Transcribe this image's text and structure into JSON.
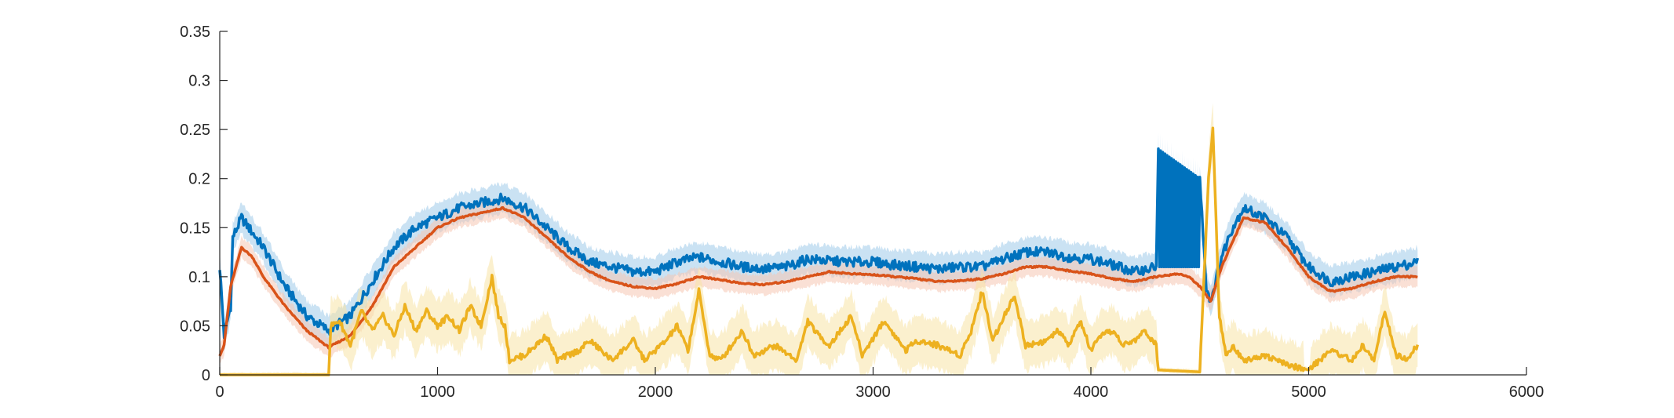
{
  "chart_data": {
    "type": "line",
    "title": "",
    "xlabel": "",
    "ylabel": "",
    "xlim": [
      0,
      6000
    ],
    "ylim": [
      0,
      0.35
    ],
    "x_ticks": [
      0,
      1000,
      2000,
      3000,
      4000,
      5000,
      6000
    ],
    "y_ticks": [
      0,
      0.05,
      0.1,
      0.15,
      0.2,
      0.25,
      0.3,
      0.35
    ],
    "x_tick_labels": [
      "0",
      "1000",
      "2000",
      "3000",
      "4000",
      "5000",
      "6000"
    ],
    "y_tick_labels": [
      "0",
      "0.05",
      "0.1",
      "0.15",
      "0.2",
      "0.25",
      "0.3",
      "0.35"
    ],
    "grid": false,
    "legend": "none",
    "series": [
      {
        "color": "#0072BD",
        "band_color": "#9ECAE9",
        "points": [
          [
            0,
            0.11
          ],
          [
            20,
            0.04
          ],
          [
            50,
            0.07
          ],
          [
            60,
            0.14
          ],
          [
            100,
            0.16
          ],
          [
            150,
            0.145
          ],
          [
            200,
            0.13
          ],
          [
            300,
            0.09
          ],
          [
            400,
            0.06
          ],
          [
            500,
            0.045
          ],
          [
            600,
            0.06
          ],
          [
            700,
            0.095
          ],
          [
            800,
            0.13
          ],
          [
            900,
            0.15
          ],
          [
            1000,
            0.16
          ],
          [
            1100,
            0.17
          ],
          [
            1200,
            0.175
          ],
          [
            1300,
            0.18
          ],
          [
            1400,
            0.17
          ],
          [
            1500,
            0.15
          ],
          [
            1600,
            0.13
          ],
          [
            1700,
            0.115
          ],
          [
            1800,
            0.11
          ],
          [
            1900,
            0.105
          ],
          [
            2000,
            0.105
          ],
          [
            2100,
            0.115
          ],
          [
            2200,
            0.12
          ],
          [
            2300,
            0.115
          ],
          [
            2400,
            0.11
          ],
          [
            2500,
            0.108
          ],
          [
            2600,
            0.11
          ],
          [
            2700,
            0.118
          ],
          [
            2800,
            0.116
          ],
          [
            2900,
            0.115
          ],
          [
            3000,
            0.115
          ],
          [
            3100,
            0.112
          ],
          [
            3200,
            0.11
          ],
          [
            3300,
            0.108
          ],
          [
            3400,
            0.11
          ],
          [
            3500,
            0.11
          ],
          [
            3600,
            0.118
          ],
          [
            3700,
            0.125
          ],
          [
            3800,
            0.125
          ],
          [
            3900,
            0.12
          ],
          [
            4000,
            0.118
          ],
          [
            4100,
            0.112
          ],
          [
            4200,
            0.105
          ],
          [
            4300,
            0.11
          ],
          [
            4310,
            0.23
          ],
          [
            4500,
            0.2
          ],
          [
            4530,
            0.09
          ],
          [
            4550,
            0.075
          ],
          [
            4600,
            0.12
          ],
          [
            4650,
            0.15
          ],
          [
            4700,
            0.17
          ],
          [
            4800,
            0.16
          ],
          [
            4900,
            0.14
          ],
          [
            5000,
            0.11
          ],
          [
            5100,
            0.095
          ],
          [
            5200,
            0.1
          ],
          [
            5300,
            0.105
          ],
          [
            5400,
            0.11
          ],
          [
            5500,
            0.115
          ]
        ]
      },
      {
        "color": "#D95319",
        "band_color": "#F5C6B3",
        "points": [
          [
            0,
            0.02
          ],
          [
            20,
            0.03
          ],
          [
            50,
            0.09
          ],
          [
            100,
            0.13
          ],
          [
            150,
            0.12
          ],
          [
            200,
            0.1
          ],
          [
            300,
            0.07
          ],
          [
            400,
            0.045
          ],
          [
            500,
            0.028
          ],
          [
            600,
            0.04
          ],
          [
            700,
            0.07
          ],
          [
            800,
            0.11
          ],
          [
            900,
            0.13
          ],
          [
            1000,
            0.15
          ],
          [
            1100,
            0.16
          ],
          [
            1200,
            0.165
          ],
          [
            1300,
            0.17
          ],
          [
            1400,
            0.16
          ],
          [
            1500,
            0.14
          ],
          [
            1600,
            0.12
          ],
          [
            1700,
            0.105
          ],
          [
            1800,
            0.095
          ],
          [
            1900,
            0.09
          ],
          [
            2000,
            0.088
          ],
          [
            2100,
            0.093
          ],
          [
            2200,
            0.1
          ],
          [
            2300,
            0.097
          ],
          [
            2400,
            0.093
          ],
          [
            2500,
            0.092
          ],
          [
            2600,
            0.095
          ],
          [
            2700,
            0.1
          ],
          [
            2800,
            0.105
          ],
          [
            2900,
            0.103
          ],
          [
            3000,
            0.102
          ],
          [
            3100,
            0.1
          ],
          [
            3200,
            0.098
          ],
          [
            3300,
            0.095
          ],
          [
            3400,
            0.096
          ],
          [
            3500,
            0.098
          ],
          [
            3600,
            0.103
          ],
          [
            3700,
            0.11
          ],
          [
            3800,
            0.11
          ],
          [
            3900,
            0.106
          ],
          [
            4000,
            0.103
          ],
          [
            4100,
            0.098
          ],
          [
            4200,
            0.095
          ],
          [
            4300,
            0.1
          ],
          [
            4400,
            0.103
          ],
          [
            4450,
            0.1
          ],
          [
            4500,
            0.09
          ],
          [
            4550,
            0.075
          ],
          [
            4600,
            0.11
          ],
          [
            4700,
            0.16
          ],
          [
            4800,
            0.155
          ],
          [
            4900,
            0.13
          ],
          [
            5000,
            0.1
          ],
          [
            5100,
            0.085
          ],
          [
            5200,
            0.088
          ],
          [
            5300,
            0.095
          ],
          [
            5400,
            0.1
          ],
          [
            5500,
            0.1
          ]
        ]
      },
      {
        "color": "#EDB120",
        "band_color": "#F8E3A6",
        "points": [
          [
            0,
            0.0
          ],
          [
            500,
            0.0
          ],
          [
            510,
            0.05
          ],
          [
            550,
            0.055
          ],
          [
            600,
            0.03
          ],
          [
            650,
            0.065
          ],
          [
            700,
            0.045
          ],
          [
            750,
            0.06
          ],
          [
            800,
            0.04
          ],
          [
            850,
            0.07
          ],
          [
            900,
            0.045
          ],
          [
            950,
            0.065
          ],
          [
            1000,
            0.05
          ],
          [
            1050,
            0.06
          ],
          [
            1100,
            0.045
          ],
          [
            1150,
            0.07
          ],
          [
            1200,
            0.05
          ],
          [
            1250,
            0.1
          ],
          [
            1280,
            0.06
          ],
          [
            1310,
            0.05
          ],
          [
            1330,
            0.015
          ],
          [
            1400,
            0.02
          ],
          [
            1500,
            0.04
          ],
          [
            1550,
            0.015
          ],
          [
            1650,
            0.025
          ],
          [
            1700,
            0.035
          ],
          [
            1800,
            0.015
          ],
          [
            1900,
            0.035
          ],
          [
            1950,
            0.015
          ],
          [
            2050,
            0.035
          ],
          [
            2100,
            0.05
          ],
          [
            2150,
            0.025
          ],
          [
            2200,
            0.085
          ],
          [
            2250,
            0.02
          ],
          [
            2300,
            0.015
          ],
          [
            2400,
            0.045
          ],
          [
            2450,
            0.02
          ],
          [
            2500,
            0.025
          ],
          [
            2550,
            0.03
          ],
          [
            2650,
            0.015
          ],
          [
            2700,
            0.055
          ],
          [
            2750,
            0.04
          ],
          [
            2800,
            0.03
          ],
          [
            2900,
            0.06
          ],
          [
            2950,
            0.02
          ],
          [
            3050,
            0.055
          ],
          [
            3150,
            0.025
          ],
          [
            3200,
            0.035
          ],
          [
            3300,
            0.03
          ],
          [
            3400,
            0.02
          ],
          [
            3450,
            0.045
          ],
          [
            3500,
            0.085
          ],
          [
            3550,
            0.035
          ],
          [
            3600,
            0.06
          ],
          [
            3650,
            0.08
          ],
          [
            3700,
            0.03
          ],
          [
            3800,
            0.035
          ],
          [
            3850,
            0.045
          ],
          [
            3900,
            0.03
          ],
          [
            3950,
            0.055
          ],
          [
            4000,
            0.025
          ],
          [
            4050,
            0.04
          ],
          [
            4100,
            0.045
          ],
          [
            4150,
            0.03
          ],
          [
            4200,
            0.035
          ],
          [
            4250,
            0.045
          ],
          [
            4300,
            0.03
          ],
          [
            4310,
            0.005
          ],
          [
            4500,
            0.003
          ],
          [
            4540,
            0.2
          ],
          [
            4560,
            0.25
          ],
          [
            4590,
            0.06
          ],
          [
            4620,
            0.02
          ],
          [
            4650,
            0.03
          ],
          [
            4700,
            0.015
          ],
          [
            4800,
            0.02
          ],
          [
            4900,
            0.01
          ],
          [
            5000,
            0.005
          ],
          [
            5050,
            0.015
          ],
          [
            5100,
            0.025
          ],
          [
            5200,
            0.015
          ],
          [
            5250,
            0.03
          ],
          [
            5300,
            0.015
          ],
          [
            5350,
            0.065
          ],
          [
            5400,
            0.02
          ],
          [
            5450,
            0.015
          ],
          [
            5500,
            0.03
          ]
        ]
      }
    ]
  }
}
